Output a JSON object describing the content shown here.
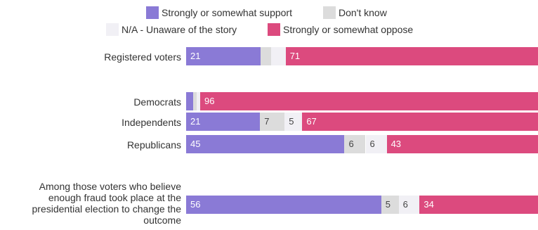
{
  "chart_data": {
    "type": "bar",
    "orientation": "horizontal",
    "stacked": true,
    "xlim": [
      0,
      100
    ],
    "grid": false,
    "legend_position": "top-center",
    "legend": [
      {
        "name": "Strongly or somewhat support",
        "color": "#8a7ad6"
      },
      {
        "name": "Don't know",
        "color": "#dcdcdc"
      },
      {
        "name": "N/A - Unaware of the story",
        "color": "#f1f0f5"
      },
      {
        "name": "Strongly or somewhat oppose",
        "color": "#dc4a7e"
      }
    ],
    "categories": [
      "Registered voters",
      "Democrats",
      "Independents",
      "Republicans",
      "Among those voters who believe enough fraud took place at the presidential election to change the outcome"
    ],
    "series": [
      {
        "name": "Strongly or somewhat support",
        "values": [
          21,
          2,
          21,
          45,
          56
        ],
        "labels": [
          "21",
          "",
          "21",
          "45",
          "56"
        ]
      },
      {
        "name": "Don't know",
        "values": [
          3,
          1,
          7,
          6,
          5
        ],
        "labels": [
          "",
          "",
          "7",
          "6",
          "5"
        ]
      },
      {
        "name": "N/A - Unaware of the story",
        "values": [
          4,
          1,
          5,
          6,
          6
        ],
        "labels": [
          "",
          "",
          "5",
          "6",
          "6"
        ]
      },
      {
        "name": "Strongly or somewhat oppose",
        "values": [
          71,
          96,
          67,
          43,
          34
        ],
        "labels": [
          "71",
          "96",
          "67",
          "43",
          "34"
        ]
      }
    ]
  }
}
